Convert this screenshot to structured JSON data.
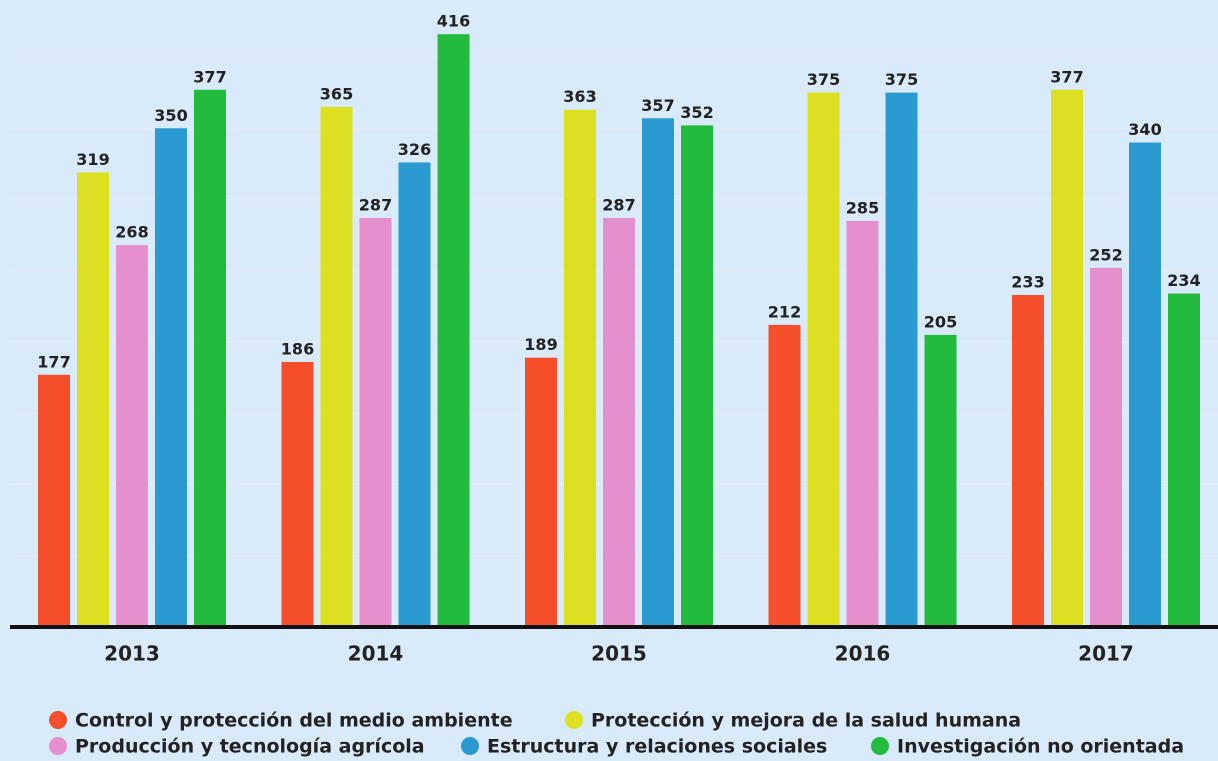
{
  "chart_data": {
    "type": "bar",
    "categories": [
      "2013",
      "2014",
      "2015",
      "2016",
      "2017"
    ],
    "series": [
      {
        "name": "Control y protección del medio ambiente",
        "color": "#f44e2b",
        "values": [
          177,
          186,
          189,
          212,
          233
        ]
      },
      {
        "name": "Protección y mejora de la salud humana",
        "color": "#dce021",
        "values": [
          319,
          365,
          363,
          375,
          377
        ]
      },
      {
        "name": "Producción y tecnología agrícola",
        "color": "#e68fcd",
        "values": [
          268,
          287,
          287,
          285,
          252
        ]
      },
      {
        "name": "Estructura y relaciones sociales",
        "color": "#2a9ad0",
        "values": [
          350,
          326,
          357,
          375,
          340
        ]
      },
      {
        "name": "Investigación no orientada",
        "color": "#22bb3e",
        "values": [
          377,
          416,
          352,
          205,
          234
        ]
      }
    ],
    "ylim": [
      0,
      440
    ],
    "yticks": [
      0,
      50,
      100,
      150,
      200,
      250,
      300,
      350,
      400
    ],
    "grid": true
  }
}
